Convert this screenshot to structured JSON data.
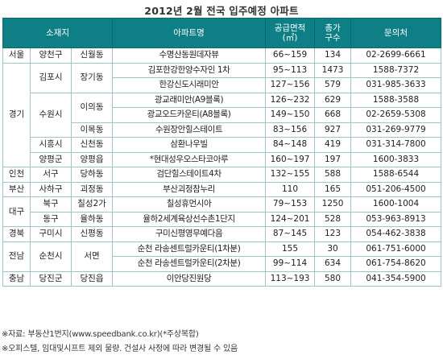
{
  "title": "2012년 2월 전국 입주예정 아파트",
  "header": {
    "location": "소재지",
    "apartment": "아파트명",
    "area_line1": "공급면적",
    "area_line2": "(㎡)",
    "households_line1": "총가",
    "households_line2": "구수",
    "contact": "문의처"
  },
  "regions": {
    "seoul": "서울",
    "gyeonggi": "경기",
    "incheon": "인천",
    "busan": "부산",
    "daegu": "대구",
    "gyeongbuk": "경북",
    "jeonnam": "전남",
    "chungnam": "충남"
  },
  "cities": {
    "yangcheon": "양천구",
    "gimpo": "김포시",
    "suwon": "수원시",
    "siheung": "시흥시",
    "yangpyeong": "양평군",
    "seo_incheon": "서구",
    "saha": "사하구",
    "buk": "북구",
    "dong": "동구",
    "gumi": "구미시",
    "suncheon": "순천시",
    "dangjin": "당진군"
  },
  "dongs": {
    "sinwol": "신월동",
    "janggi": "장기동",
    "iui": "이의동",
    "imok": "이목동",
    "sincheon": "신천동",
    "yangpyeong_eup": "양평읍",
    "danghadong": "당하동",
    "goejeong": "괴정동",
    "chilseong": "칠성2가",
    "yulha": "율하동",
    "sinpyeong": "신평동",
    "seomyeon": "서면",
    "dangjin_eup": "당진읍"
  },
  "rows": [
    {
      "name": "수명산동원데자뷰",
      "area": "66~159",
      "households": "134",
      "phone": "02-2699-6661"
    },
    {
      "name": "김포한강한양수자인 1차",
      "area": "95~113",
      "households": "1473",
      "phone": "1588-7372"
    },
    {
      "name": "한강신도시래미안",
      "area": "127~156",
      "households": "579",
      "phone": "031-985-3633"
    },
    {
      "name": "광교래미안(A9블록)",
      "area": "126~232",
      "households": "629",
      "phone": "1588-3588"
    },
    {
      "name": "광교오드카운티(A8블록)",
      "area": "149~150",
      "households": "668",
      "phone": "02-2659-5308"
    },
    {
      "name": "수원장안힐스테이트",
      "area": "83~156",
      "households": "927",
      "phone": "031-269-9779"
    },
    {
      "name": "삼환나우빌",
      "area": "84~148",
      "households": "419",
      "phone": "031-314-7800"
    },
    {
      "name": "*현대성우오스타코아루",
      "area": "160~197",
      "households": "197",
      "phone": "1600-3833"
    },
    {
      "name": "검단힐스테이트4차",
      "area": "132~155",
      "households": "588",
      "phone": "1588-6544"
    },
    {
      "name": "부산괴정참누리",
      "area": "110",
      "households": "165",
      "phone": "051-206-4500"
    },
    {
      "name": "칠성휴먼시아",
      "area": "79~153",
      "households": "1250",
      "phone": "1600-1004"
    },
    {
      "name": "율하2세계육상선수촌1단지",
      "area": "124~201",
      "households": "528",
      "phone": "053-963-8913"
    },
    {
      "name": "구미신평영무예다음",
      "area": "87~145",
      "households": "123",
      "phone": "054-462-3838"
    },
    {
      "name": "순천 라송센트럴카운티(1차분)",
      "area": "155",
      "households": "30",
      "phone": "061-751-6000"
    },
    {
      "name": "순천 라송센트럴카운티(2차분)",
      "area": "99~114",
      "households": "634",
      "phone": "061-754-8620"
    },
    {
      "name": "이안당진원당",
      "area": "113~193",
      "households": "580",
      "phone": "041-354-5900"
    }
  ],
  "footnotes": {
    "source": "※자료: 부동산1번지(www.speedbank.co.kr)(*주상복합)",
    "note": "※오피스텔, 임대및시프트 제외 물량. 건설사 사정에 따라 변경될 수 있음"
  }
}
